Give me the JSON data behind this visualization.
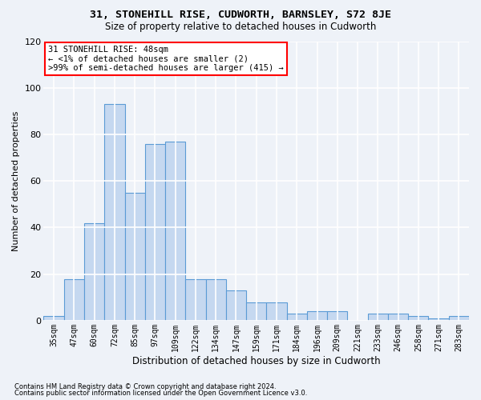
{
  "title1": "31, STONEHILL RISE, CUDWORTH, BARNSLEY, S72 8JE",
  "title2": "Size of property relative to detached houses in Cudworth",
  "xlabel": "Distribution of detached houses by size in Cudworth",
  "ylabel": "Number of detached properties",
  "categories": [
    "35sqm",
    "47sqm",
    "60sqm",
    "72sqm",
    "85sqm",
    "97sqm",
    "109sqm",
    "122sqm",
    "134sqm",
    "147sqm",
    "159sqm",
    "171sqm",
    "184sqm",
    "196sqm",
    "209sqm",
    "221sqm",
    "233sqm",
    "246sqm",
    "258sqm",
    "271sqm",
    "283sqm"
  ],
  "values": [
    2,
    18,
    42,
    93,
    55,
    76,
    77,
    18,
    18,
    13,
    8,
    8,
    3,
    4,
    4,
    0,
    3,
    3,
    2,
    1,
    2
  ],
  "bar_color": "#c5d8f0",
  "bar_edge_color": "#5b9bd5",
  "ylim": [
    0,
    120
  ],
  "yticks": [
    0,
    20,
    40,
    60,
    80,
    100,
    120
  ],
  "annotation_title": "31 STONEHILL RISE: 48sqm",
  "annotation_line2": "← <1% of detached houses are smaller (2)",
  "annotation_line3": ">99% of semi-detached houses are larger (415) →",
  "annotation_box_color": "white",
  "annotation_box_edge": "red",
  "footer1": "Contains HM Land Registry data © Crown copyright and database right 2024.",
  "footer2": "Contains public sector information licensed under the Open Government Licence v3.0.",
  "background_color": "#eef2f8",
  "grid_color": "white"
}
